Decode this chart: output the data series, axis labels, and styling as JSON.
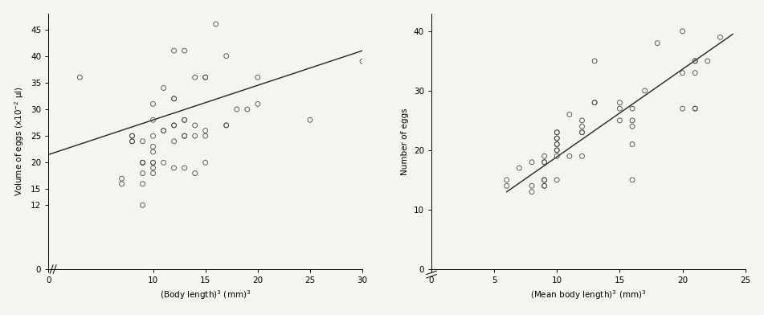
{
  "fig8": {
    "scatter_x": [
      3,
      7,
      7,
      8,
      8,
      8,
      8,
      9,
      9,
      9,
      9,
      9,
      9,
      9,
      10,
      10,
      10,
      10,
      10,
      10,
      10,
      10,
      10,
      11,
      11,
      11,
      11,
      12,
      12,
      12,
      12,
      12,
      12,
      12,
      13,
      13,
      13,
      13,
      13,
      13,
      14,
      14,
      14,
      14,
      15,
      15,
      15,
      15,
      15,
      16,
      17,
      17,
      17,
      18,
      19,
      20,
      20,
      25,
      30
    ],
    "scatter_y": [
      36,
      16,
      17,
      24,
      24,
      25,
      25,
      12,
      16,
      18,
      20,
      20,
      20,
      24,
      18,
      19,
      20,
      20,
      22,
      23,
      25,
      28,
      31,
      20,
      26,
      26,
      34,
      19,
      24,
      27,
      27,
      32,
      32,
      41,
      19,
      25,
      25,
      28,
      28,
      41,
      18,
      25,
      27,
      36,
      20,
      25,
      26,
      36,
      36,
      46,
      27,
      27,
      40,
      30,
      30,
      31,
      36,
      28,
      39
    ],
    "line_x": [
      0,
      30
    ],
    "line_y": [
      21.5,
      41.0
    ],
    "xlabel": "(Body length)$^3$ (mm)$^3$",
    "ylabel": "Volume of eggs (x10$^{-2}$ μl)",
    "xlim": [
      0,
      30
    ],
    "ylim": [
      0,
      48
    ],
    "xticks": [
      0,
      10,
      15,
      20,
      25,
      30
    ],
    "yticks": [
      0,
      12,
      15,
      20,
      25,
      30,
      35,
      40,
      45
    ]
  },
  "fig9": {
    "scatter_x": [
      6,
      6,
      7,
      8,
      8,
      8,
      9,
      9,
      9,
      9,
      9,
      9,
      9,
      10,
      10,
      10,
      10,
      10,
      10,
      10,
      10,
      10,
      10,
      11,
      11,
      12,
      12,
      12,
      12,
      12,
      13,
      13,
      13,
      15,
      15,
      15,
      16,
      16,
      16,
      16,
      16,
      17,
      18,
      20,
      20,
      20,
      21,
      21,
      21,
      21,
      21,
      22,
      23
    ],
    "scatter_y": [
      14,
      15,
      17,
      13,
      14,
      18,
      14,
      14,
      15,
      15,
      18,
      18,
      19,
      15,
      19,
      20,
      20,
      21,
      21,
      22,
      22,
      23,
      23,
      19,
      26,
      19,
      23,
      23,
      24,
      25,
      28,
      28,
      35,
      25,
      27,
      28,
      15,
      21,
      24,
      25,
      27,
      30,
      38,
      27,
      33,
      40,
      27,
      27,
      33,
      35,
      35,
      35,
      39
    ],
    "line_x": [
      6,
      24
    ],
    "line_y": [
      13.0,
      39.5
    ],
    "xlabel": "(Mean body length)$^3$ (mm)$^3$",
    "ylabel": "Number of eggs",
    "xlim": [
      0,
      25
    ],
    "ylim": [
      0,
      43
    ],
    "xticks": [
      0,
      5,
      10,
      15,
      20,
      25
    ],
    "yticks": [
      0,
      10,
      20,
      30,
      40
    ]
  },
  "marker_color": "#444444",
  "line_color": "#222222",
  "bg_color": "#f5f5f0",
  "marker_size": 18,
  "marker_style": "o",
  "marker_facecolor": "none",
  "line_width": 1.0,
  "font_size": 7.5
}
